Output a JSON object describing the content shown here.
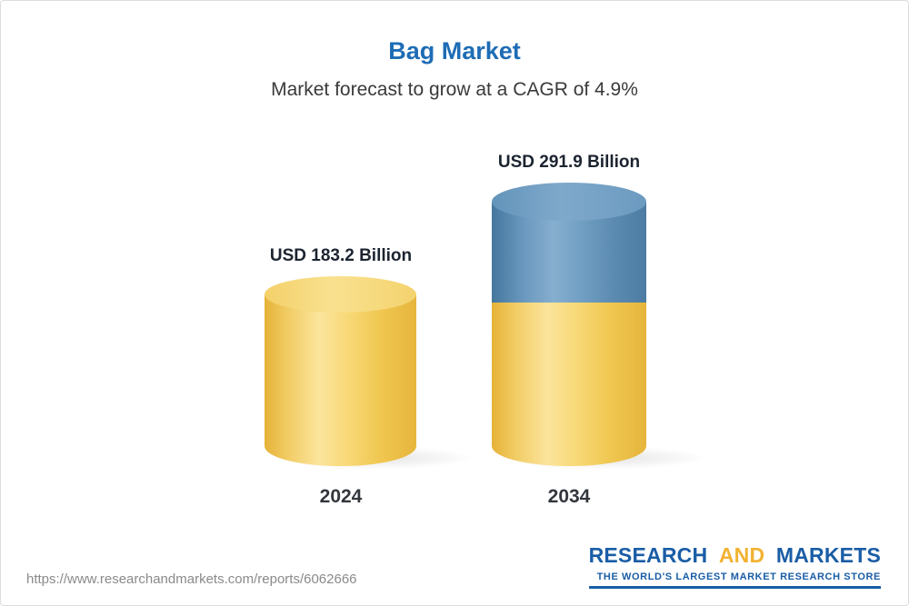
{
  "header": {
    "title": "Bag Market",
    "subtitle": "Market forecast to grow at a CAGR of 4.9%"
  },
  "chart_data": {
    "type": "bar",
    "variant": "3d-cylinder",
    "title": "Bag Market",
    "subtitle": "Market forecast to grow at a CAGR of 4.9%",
    "cagr_percent": 4.9,
    "categories": [
      "2024",
      "2034"
    ],
    "values": [
      183.2,
      291.9
    ],
    "unit": "USD Billion",
    "value_labels": [
      "USD 183.2 Billion",
      "USD 291.9 Billion"
    ],
    "legend": "none",
    "grid": false,
    "colors": {
      "bar_2024": "#F2CD66",
      "bar_2034_base": "#F2CD66",
      "bar_2034_growth_top": "#6D9AC0",
      "title": "#1E6CB5"
    }
  },
  "footer": {
    "url": "https://www.researchandmarkets.com/reports/6062666",
    "logo": {
      "part1": "RESEARCH",
      "part2": "AND",
      "part3": "MARKETS",
      "tagline": "THE WORLD'S LARGEST MARKET RESEARCH STORE"
    }
  }
}
